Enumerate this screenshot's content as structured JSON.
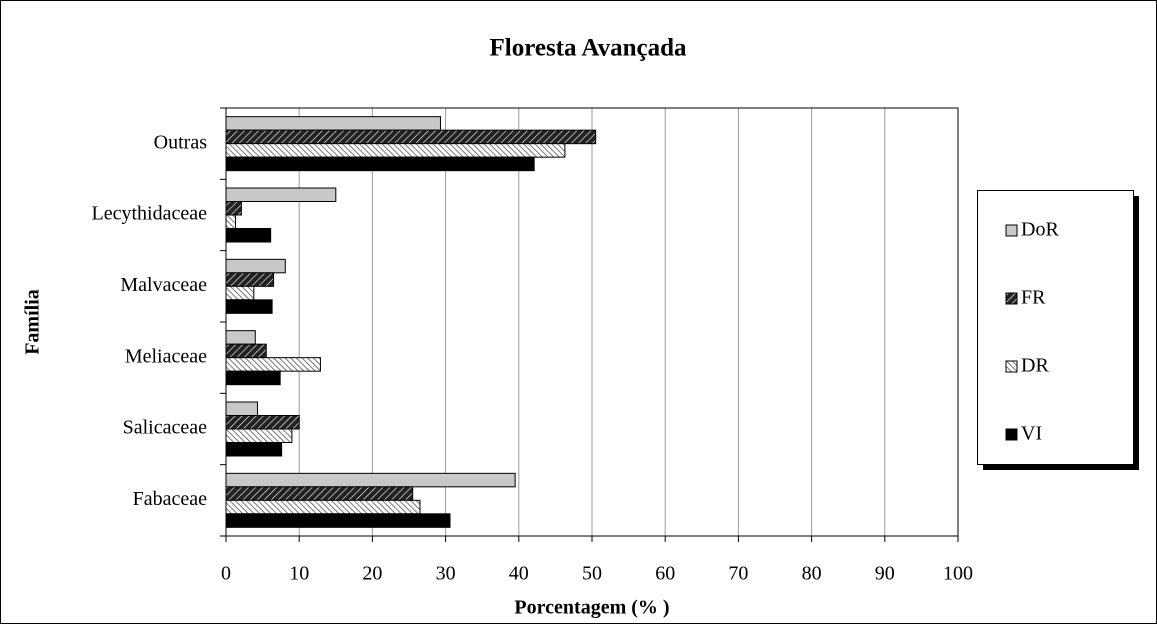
{
  "chart_data": {
    "type": "barh",
    "title": "Floresta Avançada",
    "xlabel": "Porcentagem (% )",
    "ylabel": "Família",
    "categories": [
      "Fabaceae",
      "Salicaceae",
      "Meliaceae",
      "Malvaceae",
      "Lecythidaceae",
      "Outras"
    ],
    "series": [
      {
        "name": "DoR",
        "color": "#c8c8c8",
        "pattern": "solid",
        "values": [
          39.5,
          4.3,
          4.0,
          8.1,
          15.0,
          29.3
        ]
      },
      {
        "name": "FR",
        "color": "#333333",
        "pattern": "hatch-dark",
        "values": [
          25.5,
          10.0,
          5.5,
          6.5,
          2.1,
          50.5
        ]
      },
      {
        "name": "DR",
        "color": "#aaaaaa",
        "pattern": "hatch-light",
        "values": [
          26.5,
          9.0,
          12.9,
          3.8,
          1.3,
          46.3
        ]
      },
      {
        "name": "VI",
        "color": "#000000",
        "pattern": "solid",
        "values": [
          30.6,
          7.6,
          7.4,
          6.3,
          6.1,
          42.1
        ]
      }
    ],
    "xlim": [
      0,
      100
    ],
    "xticks": [
      0,
      10,
      20,
      30,
      40,
      50,
      60,
      70,
      80,
      90,
      100
    ],
    "grid": true,
    "legend": "right"
  }
}
